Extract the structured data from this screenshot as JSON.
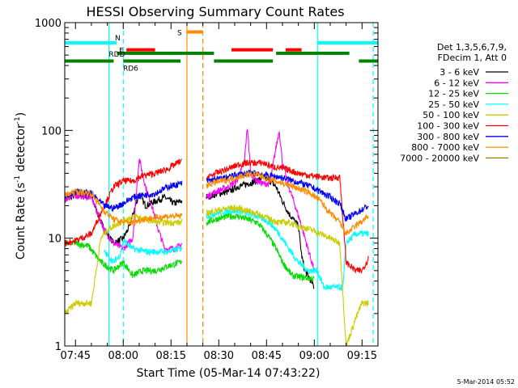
{
  "chart_data": {
    "type": "line",
    "title": "HESSI Observing Summary Count Rates",
    "xlabel": "Start Time (05-Mar-14 07:43:22)",
    "ylabel_main": "Count Rate (s",
    "ylabel_sup": "-1",
    "ylabel_mid": " detector",
    "ylabel_end": ")",
    "yscale": "log",
    "ylim": [
      1,
      1000
    ],
    "xlim_minutes": [
      -3.37,
      95
    ],
    "x_ticks": [
      {
        "label": "07:45",
        "m": 0
      },
      {
        "label": "08:00",
        "m": 15
      },
      {
        "label": "08:15",
        "m": 30
      },
      {
        "label": "08:30",
        "m": 45
      },
      {
        "label": "08:45",
        "m": 60
      },
      {
        "label": "09:00",
        "m": 75
      },
      {
        "label": "09:15",
        "m": 90
      }
    ],
    "y_ticks": [
      {
        "label": "1",
        "v": 1
      },
      {
        "label": "10",
        "v": 10
      },
      {
        "label": "100",
        "v": 100
      },
      {
        "label": "1000",
        "v": 1000
      }
    ],
    "legend": {
      "header": [
        "Det 1,3,5,6,7,9,",
        "FDecim 1, Att 0"
      ],
      "placement": "right"
    },
    "series": [
      {
        "name": "3 - 6 keV",
        "color": "#000000",
        "points": [
          [
            -3.3,
            23
          ],
          [
            0,
            25
          ],
          [
            5,
            24
          ],
          [
            9,
            12
          ],
          [
            12,
            9
          ],
          [
            15,
            10
          ],
          [
            17,
            13
          ],
          [
            20,
            26
          ],
          [
            22,
            20
          ],
          [
            25,
            22
          ],
          [
            28,
            24
          ],
          [
            31,
            21
          ],
          [
            33,
            22
          ],
          [
            41,
            24
          ],
          [
            43,
            25
          ],
          [
            45,
            26
          ],
          [
            48,
            27
          ],
          [
            51,
            30
          ],
          [
            54,
            32
          ],
          [
            57,
            34
          ],
          [
            59,
            37
          ],
          [
            61,
            34
          ],
          [
            63,
            30
          ],
          [
            65,
            22
          ],
          [
            67,
            17
          ],
          [
            70,
            13
          ],
          [
            71,
            7
          ],
          [
            72,
            5
          ],
          [
            74,
            4
          ],
          [
            75,
            3.5
          ]
        ]
      },
      {
        "name": "6 - 12 keV",
        "color": "#ff00ff",
        "points": [
          [
            -3.3,
            23
          ],
          [
            0,
            25
          ],
          [
            5,
            24
          ],
          [
            9,
            12
          ],
          [
            12,
            9
          ],
          [
            15,
            8
          ],
          [
            18,
            10
          ],
          [
            20,
            55
          ],
          [
            22,
            30
          ],
          [
            24,
            20
          ],
          [
            26,
            12
          ],
          [
            28,
            8
          ],
          [
            31,
            8
          ],
          [
            33,
            8.5
          ],
          [
            41,
            24
          ],
          [
            44,
            27
          ],
          [
            48,
            30
          ],
          [
            51,
            35
          ],
          [
            53,
            50
          ],
          [
            54,
            110
          ],
          [
            55,
            40
          ],
          [
            57,
            34
          ],
          [
            59,
            32
          ],
          [
            61,
            32
          ],
          [
            63,
            70
          ],
          [
            64,
            100
          ],
          [
            65,
            50
          ],
          [
            67,
            30
          ],
          [
            69,
            20
          ],
          [
            71,
            13
          ],
          [
            73,
            8
          ],
          [
            75,
            5
          ]
        ]
      },
      {
        "name": "12 - 25 keV",
        "color": "#00dd00",
        "points": [
          [
            -3.3,
            9
          ],
          [
            0,
            9
          ],
          [
            4,
            8.5
          ],
          [
            8,
            6
          ],
          [
            12,
            5
          ],
          [
            15,
            6
          ],
          [
            18,
            4.5
          ],
          [
            21,
            5
          ],
          [
            25,
            5
          ],
          [
            29,
            5.5
          ],
          [
            33,
            6
          ],
          [
            41,
            14
          ],
          [
            44,
            15
          ],
          [
            48,
            16
          ],
          [
            51,
            16
          ],
          [
            54,
            15
          ],
          [
            57,
            14
          ],
          [
            59,
            12
          ],
          [
            61,
            10
          ],
          [
            63,
            8
          ],
          [
            65,
            6
          ],
          [
            68,
            4.5
          ],
          [
            72,
            4.3
          ],
          [
            75,
            4.2
          ]
        ]
      },
      {
        "name": "25 - 50 keV",
        "color": "#00ffff",
        "points": [
          [
            -3.3,
            null
          ],
          [
            0,
            null
          ],
          [
            5,
            null
          ],
          [
            8,
            null
          ],
          [
            9,
            7.5
          ],
          [
            12,
            6
          ],
          [
            14,
            7
          ],
          [
            15,
            9.5
          ],
          [
            18,
            8
          ],
          [
            22,
            7.5
          ],
          [
            26,
            7.5
          ],
          [
            29,
            7.5
          ],
          [
            33,
            8
          ],
          [
            41,
            16
          ],
          [
            44,
            17
          ],
          [
            48,
            18
          ],
          [
            51,
            18
          ],
          [
            54,
            17
          ],
          [
            57,
            16
          ],
          [
            59,
            15
          ],
          [
            61,
            14
          ],
          [
            64,
            11
          ],
          [
            67,
            8
          ],
          [
            70,
            6
          ],
          [
            73,
            5
          ],
          [
            76,
            5
          ],
          [
            78,
            3.5
          ],
          [
            84,
            3.5
          ],
          [
            85,
            9
          ],
          [
            88,
            11
          ],
          [
            92,
            11
          ]
        ]
      },
      {
        "name": "50 - 100 keV",
        "color": "#cccc00",
        "points": [
          [
            -3.3,
            2
          ],
          [
            0,
            2.5
          ],
          [
            5,
            2.5
          ],
          [
            8,
            10
          ],
          [
            10,
            12
          ],
          [
            12,
            13
          ],
          [
            14,
            14
          ],
          [
            16,
            15
          ],
          [
            19,
            16
          ],
          [
            22,
            15
          ],
          [
            26,
            14
          ],
          [
            29,
            14
          ],
          [
            33,
            14
          ],
          [
            41,
            17
          ],
          [
            44,
            18
          ],
          [
            48,
            19
          ],
          [
            51,
            19
          ],
          [
            54,
            18
          ],
          [
            57,
            17
          ],
          [
            59,
            16
          ],
          [
            61,
            15
          ],
          [
            64,
            14
          ],
          [
            67,
            14
          ],
          [
            70,
            13
          ],
          [
            74,
            12
          ],
          [
            77,
            11
          ],
          [
            80,
            10
          ],
          [
            83,
            9
          ],
          [
            85,
            1
          ],
          [
            88,
            1.8
          ],
          [
            90,
            2.5
          ],
          [
            92,
            2.5
          ]
        ]
      },
      {
        "name": "100 - 300 keV",
        "color": "#ff0000",
        "points": [
          [
            -3.3,
            9
          ],
          [
            0,
            9.5
          ],
          [
            5,
            11
          ],
          [
            9,
            20
          ],
          [
            12,
            30
          ],
          [
            15,
            34
          ],
          [
            18,
            34
          ],
          [
            21,
            38
          ],
          [
            25,
            40
          ],
          [
            29,
            44
          ],
          [
            33,
            52
          ],
          [
            41,
            36
          ],
          [
            44,
            40
          ],
          [
            48,
            44
          ],
          [
            51,
            48
          ],
          [
            54,
            50
          ],
          [
            57,
            50
          ],
          [
            59,
            50
          ],
          [
            61,
            47
          ],
          [
            64,
            45
          ],
          [
            67,
            43
          ],
          [
            70,
            40
          ],
          [
            74,
            38
          ],
          [
            77,
            37
          ],
          [
            80,
            36
          ],
          [
            83,
            37
          ],
          [
            85,
            6
          ],
          [
            88,
            5
          ],
          [
            90,
            5
          ],
          [
            92,
            6.5
          ]
        ]
      },
      {
        "name": "300 - 800 keV",
        "color": "#0000ff",
        "points": [
          [
            -3.3,
            25
          ],
          [
            0,
            27
          ],
          [
            5,
            26
          ],
          [
            9,
            20
          ],
          [
            12,
            19
          ],
          [
            15,
            21
          ],
          [
            18,
            24
          ],
          [
            21,
            25
          ],
          [
            25,
            26
          ],
          [
            29,
            30
          ],
          [
            33,
            32
          ],
          [
            41,
            34
          ],
          [
            44,
            35
          ],
          [
            48,
            37
          ],
          [
            51,
            39
          ],
          [
            54,
            40
          ],
          [
            57,
            40
          ],
          [
            59,
            39
          ],
          [
            61,
            38
          ],
          [
            64,
            37
          ],
          [
            67,
            35
          ],
          [
            70,
            33
          ],
          [
            74,
            30
          ],
          [
            77,
            27
          ],
          [
            80,
            24
          ],
          [
            83,
            21
          ],
          [
            85,
            15
          ],
          [
            88,
            17
          ],
          [
            92,
            20
          ]
        ]
      },
      {
        "name": "800 - 7000 keV",
        "color": "#ff8c00",
        "points": [
          [
            -3.3,
            25
          ],
          [
            0,
            27
          ],
          [
            5,
            26
          ],
          [
            9,
            18
          ],
          [
            12,
            15
          ],
          [
            15,
            14
          ],
          [
            18,
            14
          ],
          [
            21,
            15
          ],
          [
            25,
            15.5
          ],
          [
            29,
            16
          ],
          [
            33,
            16
          ],
          [
            41,
            31
          ],
          [
            44,
            33
          ],
          [
            48,
            35
          ],
          [
            51,
            37
          ],
          [
            54,
            39
          ],
          [
            57,
            39
          ],
          [
            59,
            37
          ],
          [
            61,
            35
          ],
          [
            64,
            33
          ],
          [
            67,
            31
          ],
          [
            70,
            29
          ],
          [
            74,
            26
          ],
          [
            77,
            22
          ],
          [
            80,
            17
          ],
          [
            83,
            14
          ],
          [
            85,
            11
          ],
          [
            88,
            13
          ],
          [
            92,
            16
          ]
        ]
      },
      {
        "name": "7000 - 20000 keV",
        "color": "#9a7a00",
        "points": []
      }
    ],
    "status_bars": [
      {
        "label": "N",
        "color": "#00ffff",
        "row": 650,
        "segments": [
          [
            -3.37,
            13
          ],
          [
            76,
            95
          ]
        ]
      },
      {
        "label": "F",
        "color": "#ff0000",
        "row": 560,
        "segments": [
          [
            16,
            25
          ],
          [
            49,
            62
          ],
          [
            66,
            71
          ]
        ]
      },
      {
        "label": "S",
        "color": "#ff8c00",
        "row": 820,
        "segments": [
          [
            35,
            40
          ]
        ]
      },
      {
        "label": "RDD",
        "color": "#008000",
        "row": 520,
        "segments": [
          [
            13,
            43.5
          ],
          [
            63,
            86
          ]
        ]
      },
      {
        "label": "RD6",
        "color": "#008000",
        "row": 440,
        "segments": [
          [
            -3.37,
            12
          ],
          [
            15,
            33
          ],
          [
            43.5,
            62
          ],
          [
            89,
            95
          ]
        ]
      }
    ],
    "vertical_lines": [
      {
        "m": 10.5,
        "color": "#00ffff",
        "style": "solid"
      },
      {
        "m": 15.0,
        "color": "#00ffff",
        "style": "dashed"
      },
      {
        "m": 35.0,
        "color": "#ff8c00",
        "style": "solid"
      },
      {
        "m": 40.0,
        "color": "#ff8c00",
        "style": "dashed"
      },
      {
        "m": 76.0,
        "color": "#00ffff",
        "style": "solid"
      },
      {
        "m": 93.5,
        "color": "#00ffff",
        "style": "dashed"
      }
    ],
    "gap_minutes": [
      33.5,
      41
    ],
    "footer": "5-Mar-2014 05:52"
  }
}
